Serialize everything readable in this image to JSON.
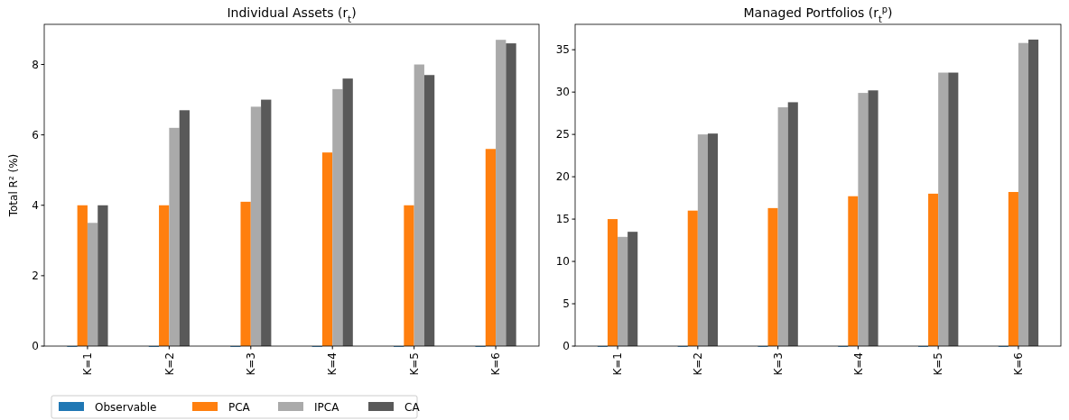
{
  "chart_data": [
    {
      "type": "bar",
      "title": "Individual Assets (r$_{t}$)",
      "ylabel": "Total R² (%)",
      "categories": [
        "K=1",
        "K=2",
        "K=3",
        "K=4",
        "K=5",
        "K=6"
      ],
      "ylim": [
        0,
        9.14
      ],
      "yticks": [
        0,
        2,
        4,
        6,
        8
      ],
      "legend": "bottom",
      "series": [
        {
          "name": "Observable",
          "color": "#1f77b4",
          "values": [
            0,
            0,
            0,
            0,
            0,
            0
          ]
        },
        {
          "name": "PCA",
          "color": "#ff7f0e",
          "values": [
            4.0,
            4.0,
            4.1,
            5.5,
            4.0,
            5.6
          ]
        },
        {
          "name": "IPCA",
          "color": "#aaaaaa",
          "values": [
            3.5,
            6.2,
            6.8,
            7.3,
            8.0,
            8.7
          ]
        },
        {
          "name": "CA",
          "color": "#595959",
          "values": [
            4.0,
            6.7,
            7.0,
            7.6,
            7.7,
            8.6
          ]
        }
      ]
    },
    {
      "type": "bar",
      "title": "Managed Portfolios (r$_{t}$$^{p}$)",
      "categories": [
        "K=1",
        "K=2",
        "K=3",
        "K=4",
        "K=5",
        "K=6"
      ],
      "ylim": [
        0,
        38
      ],
      "yticks": [
        0,
        5,
        10,
        15,
        20,
        25,
        30,
        35
      ],
      "series": [
        {
          "color": "#1f77b4",
          "values": [
            0,
            0,
            0,
            0,
            0,
            0
          ]
        },
        {
          "color": "#ff7f0e",
          "values": [
            15.0,
            16.0,
            16.3,
            17.7,
            18.0,
            18.2
          ]
        },
        {
          "color": "#aaaaaa",
          "values": [
            12.9,
            25.0,
            28.2,
            29.9,
            32.3,
            35.8
          ]
        },
        {
          "color": "#595959",
          "values": [
            13.5,
            25.1,
            28.8,
            30.2,
            32.3,
            36.2
          ]
        }
      ]
    }
  ]
}
